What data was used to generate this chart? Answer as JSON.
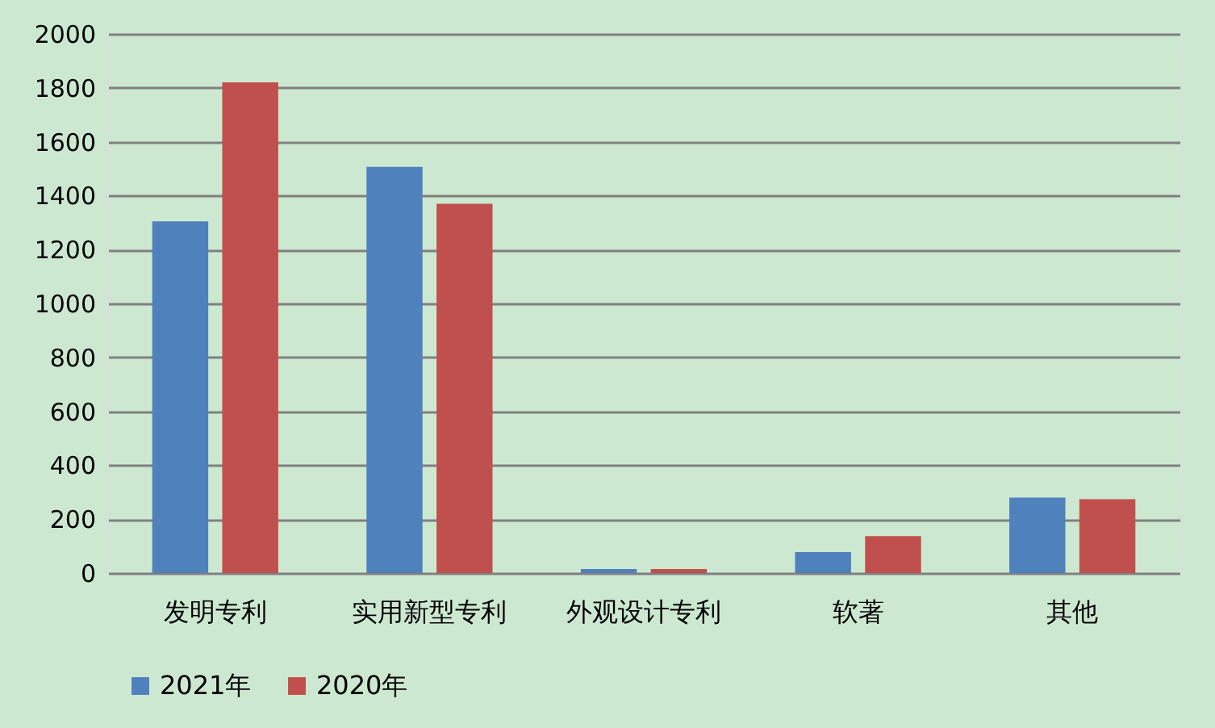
{
  "chart_data": {
    "type": "bar",
    "categories": [
      "发明专利",
      "实用新型专利",
      "外观设计专利",
      "软著",
      "其他"
    ],
    "series": [
      {
        "name": "2021年",
        "color": "#4f81bd",
        "values": [
          1305,
          1507,
          15,
          78,
          280
        ]
      },
      {
        "name": "2020年",
        "color": "#c0504d",
        "values": [
          1820,
          1370,
          15,
          137,
          274
        ]
      }
    ],
    "ylim": [
      0,
      2000
    ],
    "yticks": [
      0,
      200,
      400,
      600,
      800,
      1000,
      1200,
      1400,
      1600,
      1800,
      2000
    ],
    "grid": "y",
    "legend": "bottom"
  }
}
